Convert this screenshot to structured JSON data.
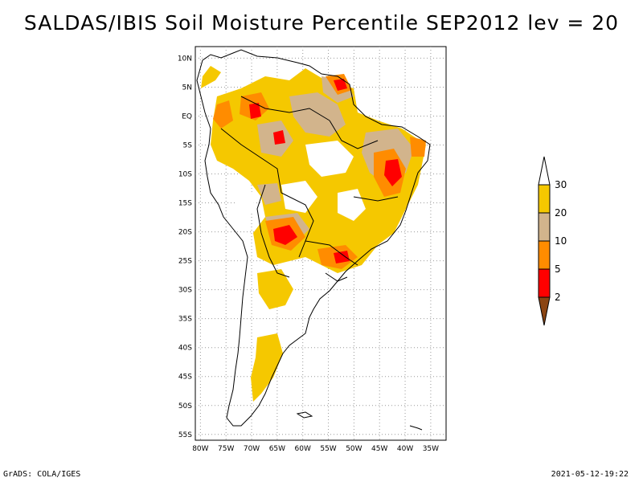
{
  "title": "SALDAS/IBIS Soil Moisture Percentile SEP2012 lev = 20",
  "map": {
    "lat_labels": [
      "10N",
      "5N",
      "EQ",
      "5S",
      "10S",
      "15S",
      "20S",
      "25S",
      "30S",
      "35S",
      "40S",
      "45S",
      "50S",
      "55S"
    ],
    "lon_labels": [
      "80W",
      "75W",
      "70W",
      "65W",
      "60W",
      "55W",
      "50W",
      "45W",
      "40W",
      "35W"
    ]
  },
  "legend": {
    "labels": [
      "30",
      "20",
      "10",
      "5",
      "2"
    ],
    "colors": {
      "above_30": "#ffffff",
      "20_30": "#f5c800",
      "10_20": "#d2b48c",
      "5_10": "#ff8c00",
      "2_5": "#ff0000",
      "below_2": "#8b4513"
    }
  },
  "footer": {
    "left": "GrADS: COLA/IGES",
    "right": "2021-05-12-19:22"
  }
}
